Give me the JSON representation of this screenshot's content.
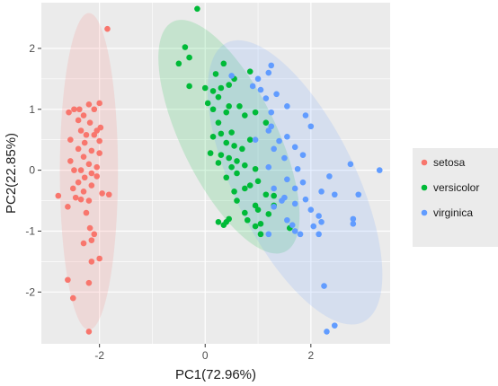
{
  "chart_data": {
    "type": "scatter",
    "xlabel": "PC1(72.96%)",
    "ylabel": "PC2(22.85%)",
    "xlim": [
      -3.1,
      3.5
    ],
    "ylim": [
      -2.85,
      2.75
    ],
    "x_ticks": [
      -2,
      0,
      2
    ],
    "y_ticks": [
      -2,
      -1,
      0,
      1,
      2
    ],
    "x_tick_labels": [
      "-2",
      "0",
      "2"
    ],
    "y_tick_labels": [
      "-2",
      "-1",
      "0",
      "1",
      "2"
    ],
    "grid": true,
    "legend_position": "right",
    "legend": {
      "entries": [
        {
          "label": "setosa",
          "color": "#F8766D"
        },
        {
          "label": "versicolor",
          "color": "#00BA38"
        },
        {
          "label": "virginica",
          "color": "#619CFF"
        }
      ]
    },
    "ellipses": [
      {
        "series": "setosa",
        "cx": -2.2,
        "cy": -0.02,
        "rx": 0.55,
        "ry": 2.6,
        "angle": 0,
        "fill": "#F8766D"
      },
      {
        "series": "versicolor",
        "cx": 0.45,
        "cy": 0.55,
        "rx": 0.9,
        "ry": 2.1,
        "angle": -26,
        "fill": "#00BA38"
      },
      {
        "series": "virginica",
        "cx": 1.7,
        "cy": -0.2,
        "rx": 1.15,
        "ry": 2.55,
        "angle": -26,
        "fill": "#619CFF"
      }
    ],
    "series": [
      {
        "name": "setosa",
        "color": "#F8766D",
        "points": [
          [
            -1.85,
            2.32
          ],
          [
            -2.48,
            1.0
          ],
          [
            -2.38,
            1.0
          ],
          [
            -2.2,
            1.08
          ],
          [
            -2.1,
            1.0
          ],
          [
            -2.0,
            1.1
          ],
          [
            -2.58,
            0.95
          ],
          [
            -2.3,
            0.9
          ],
          [
            -2.4,
            0.82
          ],
          [
            -2.18,
            0.78
          ],
          [
            -1.98,
            0.7
          ],
          [
            -2.05,
            0.65
          ],
          [
            -2.35,
            0.65
          ],
          [
            -2.25,
            0.58
          ],
          [
            -2.1,
            0.58
          ],
          [
            -2.55,
            0.5
          ],
          [
            -2.0,
            0.48
          ],
          [
            -2.28,
            0.45
          ],
          [
            -2.4,
            0.35
          ],
          [
            -2.15,
            0.32
          ],
          [
            -2.0,
            0.28
          ],
          [
            -2.3,
            0.22
          ],
          [
            -2.55,
            0.15
          ],
          [
            -2.2,
            0.1
          ],
          [
            -2.05,
            0.05
          ],
          [
            -2.48,
            0.0
          ],
          [
            -2.35,
            0.0
          ],
          [
            -2.15,
            -0.05
          ],
          [
            -2.05,
            -0.1
          ],
          [
            -2.28,
            -0.12
          ],
          [
            -2.4,
            -0.2
          ],
          [
            -2.15,
            -0.25
          ],
          [
            -2.5,
            -0.3
          ],
          [
            -2.3,
            -0.35
          ],
          [
            -1.95,
            -0.38
          ],
          [
            -1.82,
            -0.4
          ],
          [
            -2.78,
            -0.42
          ],
          [
            -2.45,
            -0.45
          ],
          [
            -2.35,
            -0.48
          ],
          [
            -2.2,
            -0.5
          ],
          [
            -2.6,
            -0.6
          ],
          [
            -2.25,
            -0.7
          ],
          [
            -2.18,
            -0.95
          ],
          [
            -2.1,
            -1.05
          ],
          [
            -2.15,
            -1.15
          ],
          [
            -2.3,
            -1.2
          ],
          [
            -2.0,
            -1.45
          ],
          [
            -2.15,
            -1.5
          ],
          [
            -2.6,
            -1.8
          ],
          [
            -2.2,
            -1.85
          ],
          [
            -2.5,
            -2.1
          ],
          [
            -2.2,
            -2.65
          ]
        ]
      },
      {
        "name": "versicolor",
        "color": "#00BA38",
        "points": [
          [
            -0.15,
            2.65
          ],
          [
            -0.38,
            2.02
          ],
          [
            -0.3,
            1.85
          ],
          [
            -0.5,
            1.75
          ],
          [
            0.35,
            1.75
          ],
          [
            0.85,
            1.62
          ],
          [
            0.2,
            1.58
          ],
          [
            0.55,
            1.5
          ],
          [
            0.45,
            1.4
          ],
          [
            0.3,
            1.35
          ],
          [
            0.0,
            1.35
          ],
          [
            -0.3,
            1.38
          ],
          [
            0.15,
            1.3
          ],
          [
            0.25,
            1.2
          ],
          [
            0.05,
            1.1
          ],
          [
            0.45,
            1.05
          ],
          [
            0.65,
            1.05
          ],
          [
            0.15,
            1.0
          ],
          [
            0.95,
            0.95
          ],
          [
            0.4,
            0.95
          ],
          [
            0.75,
            0.9
          ],
          [
            0.25,
            0.78
          ],
          [
            1.15,
            0.78
          ],
          [
            0.5,
            0.62
          ],
          [
            0.3,
            0.6
          ],
          [
            0.15,
            0.55
          ],
          [
            0.85,
            0.5
          ],
          [
            0.4,
            0.45
          ],
          [
            0.55,
            0.4
          ],
          [
            0.7,
            0.35
          ],
          [
            0.1,
            0.28
          ],
          [
            0.3,
            0.25
          ],
          [
            0.45,
            0.2
          ],
          [
            0.6,
            0.15
          ],
          [
            0.25,
            0.12
          ],
          [
            0.75,
            0.08
          ],
          [
            0.5,
            0.05
          ],
          [
            0.95,
            0.02
          ],
          [
            0.6,
            -0.05
          ],
          [
            0.4,
            -0.12
          ],
          [
            1.0,
            -0.18
          ],
          [
            0.85,
            -0.25
          ],
          [
            0.75,
            -0.3
          ],
          [
            0.55,
            -0.35
          ],
          [
            1.15,
            -0.4
          ],
          [
            1.3,
            -0.42
          ],
          [
            0.6,
            -0.5
          ],
          [
            0.95,
            -0.58
          ],
          [
            1.3,
            -0.58
          ],
          [
            1.0,
            -0.65
          ],
          [
            0.75,
            -0.7
          ],
          [
            1.2,
            -0.72
          ],
          [
            0.45,
            -0.8
          ],
          [
            0.8,
            -0.82
          ],
          [
            0.4,
            -0.85
          ],
          [
            0.25,
            -0.85
          ],
          [
            1.05,
            -0.88
          ],
          [
            0.95,
            -0.92
          ],
          [
            0.35,
            -0.9
          ],
          [
            1.6,
            -0.95
          ],
          [
            1.05,
            -1.05
          ]
        ]
      },
      {
        "name": "virginica",
        "color": "#619CFF",
        "points": [
          [
            1.25,
            1.72
          ],
          [
            1.2,
            1.6
          ],
          [
            0.5,
            1.55
          ],
          [
            1.0,
            1.5
          ],
          [
            0.9,
            1.38
          ],
          [
            1.05,
            1.32
          ],
          [
            1.35,
            1.25
          ],
          [
            1.15,
            1.18
          ],
          [
            1.55,
            1.05
          ],
          [
            1.25,
            0.95
          ],
          [
            1.9,
            0.9
          ],
          [
            2.0,
            0.72
          ],
          [
            1.25,
            0.72
          ],
          [
            1.2,
            0.65
          ],
          [
            1.55,
            0.55
          ],
          [
            0.95,
            0.5
          ],
          [
            1.4,
            0.48
          ],
          [
            1.7,
            0.38
          ],
          [
            1.3,
            0.35
          ],
          [
            1.85,
            0.25
          ],
          [
            1.5,
            0.2
          ],
          [
            2.75,
            0.1
          ],
          [
            1.2,
            0.05
          ],
          [
            1.75,
            0.02
          ],
          [
            3.3,
            0.0
          ],
          [
            2.35,
            -0.1
          ],
          [
            1.55,
            -0.15
          ],
          [
            1.85,
            -0.2
          ],
          [
            1.3,
            -0.3
          ],
          [
            1.7,
            -0.3
          ],
          [
            2.2,
            -0.35
          ],
          [
            2.45,
            -0.4
          ],
          [
            2.9,
            -0.4
          ],
          [
            1.5,
            -0.45
          ],
          [
            1.9,
            -0.48
          ],
          [
            1.45,
            -0.5
          ],
          [
            1.7,
            -0.55
          ],
          [
            1.3,
            -0.6
          ],
          [
            2.0,
            -0.65
          ],
          [
            2.15,
            -0.75
          ],
          [
            2.8,
            -0.8
          ],
          [
            1.55,
            -0.82
          ],
          [
            2.2,
            -0.85
          ],
          [
            1.65,
            -0.9
          ],
          [
            2.05,
            -0.92
          ],
          [
            1.8,
            -1.05
          ],
          [
            2.15,
            -1.05
          ],
          [
            2.8,
            -0.88
          ],
          [
            1.7,
            -1.0
          ],
          [
            1.2,
            -1.05
          ],
          [
            2.25,
            -1.9
          ],
          [
            2.45,
            -2.55
          ],
          [
            2.3,
            -2.65
          ]
        ]
      }
    ]
  }
}
